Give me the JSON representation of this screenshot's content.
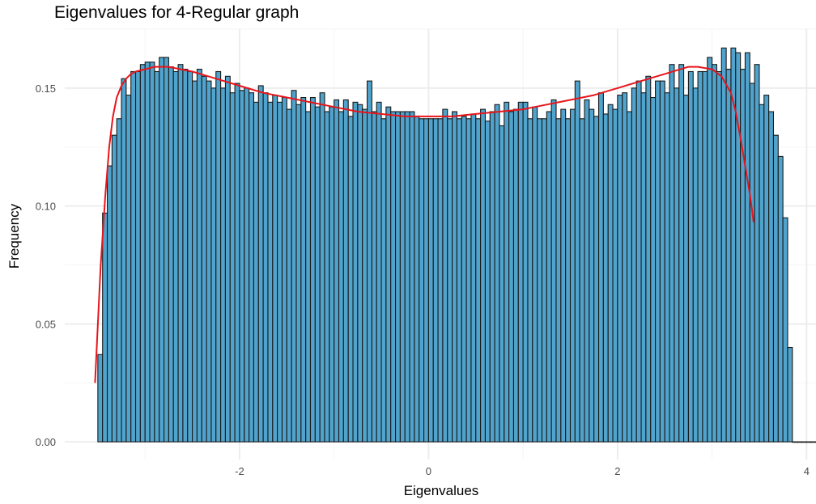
{
  "chart_data": {
    "type": "bar",
    "title": "Eigenvalues for 4-Regular graph",
    "xlabel": "Eigenvalues",
    "ylabel": "Frequency",
    "xlim": [
      -3.85,
      4.1
    ],
    "ylim": [
      -0.0075,
      0.175
    ],
    "x_ticks": [
      -2,
      0,
      2,
      4
    ],
    "x_tick_labels": [
      "-2",
      "0",
      "2",
      "4"
    ],
    "y_ticks": [
      0,
      0.05,
      0.1,
      0.15
    ],
    "y_tick_labels": [
      "0.00",
      "0.05",
      "0.10",
      "0.15"
    ],
    "grid": true,
    "colors": {
      "bar_fill": "#4fa3cc",
      "bar_edge": "#1a1a1a",
      "density_line": "#e8151b",
      "grid_major": "#ebebeb",
      "grid_minor": "#f5f5f5"
    },
    "histogram": {
      "bin_start": -3.5,
      "bin_width": 0.05,
      "values": [
        0.037,
        0.097,
        0.117,
        0.13,
        0.137,
        0.154,
        0.147,
        0.157,
        0.157,
        0.16,
        0.161,
        0.161,
        0.157,
        0.163,
        0.163,
        0.159,
        0.157,
        0.16,
        0.158,
        0.157,
        0.153,
        0.158,
        0.155,
        0.153,
        0.15,
        0.157,
        0.15,
        0.155,
        0.148,
        0.152,
        0.149,
        0.15,
        0.148,
        0.144,
        0.151,
        0.148,
        0.144,
        0.147,
        0.144,
        0.146,
        0.141,
        0.149,
        0.143,
        0.146,
        0.14,
        0.146,
        0.142,
        0.148,
        0.14,
        0.142,
        0.145,
        0.14,
        0.145,
        0.138,
        0.144,
        0.143,
        0.141,
        0.153,
        0.14,
        0.144,
        0.137,
        0.142,
        0.14,
        0.14,
        0.14,
        0.14,
        0.14,
        0.138,
        0.137,
        0.137,
        0.137,
        0.137,
        0.137,
        0.141,
        0.137,
        0.14,
        0.137,
        0.138,
        0.137,
        0.139,
        0.137,
        0.141,
        0.136,
        0.14,
        0.143,
        0.134,
        0.144,
        0.14,
        0.141,
        0.144,
        0.144,
        0.137,
        0.142,
        0.137,
        0.137,
        0.14,
        0.145,
        0.137,
        0.141,
        0.137,
        0.141,
        0.153,
        0.137,
        0.145,
        0.141,
        0.138,
        0.148,
        0.139,
        0.143,
        0.141,
        0.147,
        0.148,
        0.14,
        0.15,
        0.153,
        0.148,
        0.155,
        0.146,
        0.153,
        0.153,
        0.148,
        0.16,
        0.15,
        0.16,
        0.147,
        0.157,
        0.15,
        0.157,
        0.157,
        0.163,
        0.16,
        0.157,
        0.167,
        0.158,
        0.167,
        0.165,
        0.158,
        0.165,
        0.152,
        0.16,
        0.143,
        0.147,
        0.14,
        0.13,
        0.121,
        0.095,
        0.04,
        0.0,
        0.0,
        0.0,
        0.0,
        0.0,
        0.0,
        0.0,
        0.0,
        0.0,
        0.0,
        0.0,
        0.003
      ]
    },
    "density": {
      "x": [
        -3.53,
        -3.47,
        -3.42,
        -3.38,
        -3.34,
        -3.3,
        -3.25,
        -3.2,
        -3.15,
        -3.1,
        -3.0,
        -2.9,
        -2.75,
        -2.5,
        -2.25,
        -2.0,
        -1.75,
        -1.5,
        -1.25,
        -1.0,
        -0.75,
        -0.5,
        -0.25,
        0.0,
        0.25,
        0.5,
        0.75,
        1.0,
        1.25,
        1.5,
        1.75,
        2.0,
        2.25,
        2.5,
        2.75,
        2.85,
        3.0,
        3.1,
        3.2,
        3.25,
        3.3,
        3.35,
        3.4,
        3.44
      ],
      "y": [
        0.025,
        0.075,
        0.105,
        0.125,
        0.138,
        0.146,
        0.151,
        0.154,
        0.156,
        0.157,
        0.158,
        0.159,
        0.159,
        0.157,
        0.154,
        0.151,
        0.148,
        0.146,
        0.144,
        0.142,
        0.14,
        0.139,
        0.138,
        0.138,
        0.138,
        0.139,
        0.14,
        0.141,
        0.143,
        0.145,
        0.147,
        0.15,
        0.153,
        0.156,
        0.159,
        0.159,
        0.158,
        0.155,
        0.148,
        0.14,
        0.129,
        0.117,
        0.105,
        0.093
      ]
    }
  }
}
